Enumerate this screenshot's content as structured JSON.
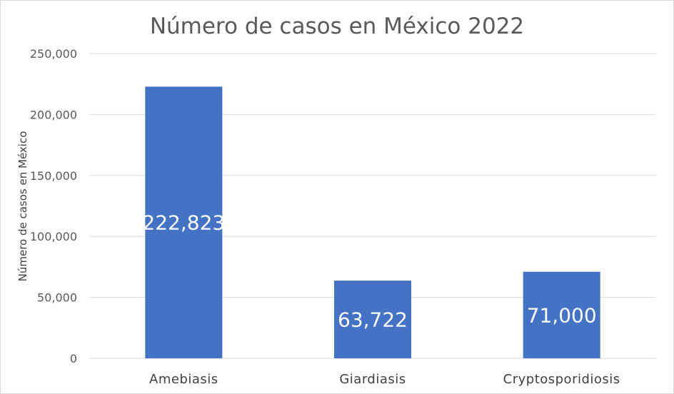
{
  "chart_data": {
    "type": "bar",
    "title": "Número de casos en México 2022",
    "xlabel": "",
    "ylabel": "Número de casos en México",
    "categories": [
      "Amebiasis",
      "Giardiasis",
      "Cryptosporidiosis"
    ],
    "values": [
      222823,
      63722,
      71000
    ],
    "data_labels": [
      "222,823",
      "63,722",
      "71,000"
    ],
    "ylim": [
      0,
      250000
    ],
    "yticks": [
      0,
      50000,
      100000,
      150000,
      200000,
      250000
    ],
    "ytick_labels": [
      "0",
      "50,000",
      "100,000",
      "150,000",
      "200,000",
      "250,000"
    ],
    "grid": true,
    "legend": "none",
    "bar_color": "#4472C4",
    "data_label_color": "#ffffff"
  }
}
